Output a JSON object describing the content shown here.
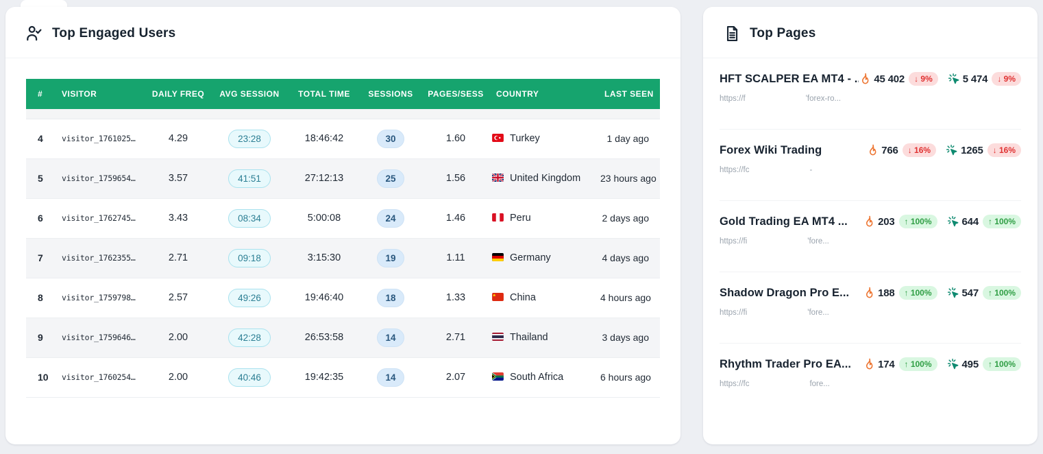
{
  "engaged_card": {
    "title": "Top Engaged Users",
    "table": {
      "columns": [
        "#",
        "VISITOR",
        "DAILY FREQ",
        "AVG SESSION",
        "TOTAL TIME",
        "SESSIONS",
        "PAGES/SESS",
        "COUNTRY",
        "LAST SEEN"
      ],
      "rows": [
        {
          "rank": "4",
          "visitor": "visitor_1761025…",
          "daily_freq": "4.29",
          "avg_session": "23:28",
          "total_time": "18:46:42",
          "sessions": "30",
          "pages_per_sess": "1.60",
          "country": "Turkey",
          "country_code": "tr",
          "last_seen": "1 day ago"
        },
        {
          "rank": "5",
          "visitor": "visitor_1759654…",
          "daily_freq": "3.57",
          "avg_session": "41:51",
          "total_time": "27:12:13",
          "sessions": "25",
          "pages_per_sess": "1.56",
          "country": "United Kingdom",
          "country_code": "gb",
          "last_seen": "23 hours ago"
        },
        {
          "rank": "6",
          "visitor": "visitor_1762745…",
          "daily_freq": "3.43",
          "avg_session": "08:34",
          "total_time": "5:00:08",
          "sessions": "24",
          "pages_per_sess": "1.46",
          "country": "Peru",
          "country_code": "pe",
          "last_seen": "2 days ago"
        },
        {
          "rank": "7",
          "visitor": "visitor_1762355…",
          "daily_freq": "2.71",
          "avg_session": "09:18",
          "total_time": "3:15:30",
          "sessions": "19",
          "pages_per_sess": "1.11",
          "country": "Germany",
          "country_code": "de",
          "last_seen": "4 days ago"
        },
        {
          "rank": "8",
          "visitor": "visitor_1759798…",
          "daily_freq": "2.57",
          "avg_session": "49:26",
          "total_time": "19:46:40",
          "sessions": "18",
          "pages_per_sess": "1.33",
          "country": "China",
          "country_code": "cn",
          "last_seen": "4 hours ago"
        },
        {
          "rank": "9",
          "visitor": "visitor_1759646…",
          "daily_freq": "2.00",
          "avg_session": "42:28",
          "total_time": "26:53:58",
          "sessions": "14",
          "pages_per_sess": "2.71",
          "country": "Thailand",
          "country_code": "th",
          "last_seen": "3 days ago"
        },
        {
          "rank": "10",
          "visitor": "visitor_1760254…",
          "daily_freq": "2.00",
          "avg_session": "40:46",
          "total_time": "19:42:35",
          "sessions": "14",
          "pages_per_sess": "2.07",
          "country": "South Africa",
          "country_code": "za",
          "last_seen": "6 hours ago"
        }
      ]
    }
  },
  "pages_card": {
    "title": "Top Pages",
    "items": [
      {
        "title": "HFT SCALPER EA MT4 - ...",
        "url_prefix": "https://f",
        "url_suffix": "'forex-ro...",
        "views": "45 402",
        "views_change": "9%",
        "views_dir": "down",
        "clicks": "5 474",
        "clicks_change": "9%",
        "clicks_dir": "down"
      },
      {
        "title": "Forex Wiki Trading",
        "url_prefix": "https://fc",
        "url_suffix": "-",
        "views": "766",
        "views_change": "16%",
        "views_dir": "down",
        "clicks": "1265",
        "clicks_change": "16%",
        "clicks_dir": "down"
      },
      {
        "title": "Gold Trading EA MT4 ...",
        "url_prefix": "https://fi",
        "url_suffix": "'fore...",
        "views": "203",
        "views_change": "100%",
        "views_dir": "up",
        "clicks": "644",
        "clicks_change": "100%",
        "clicks_dir": "up"
      },
      {
        "title": "Shadow Dragon Pro E...",
        "url_prefix": "https://fi",
        "url_suffix": "'fore...",
        "views": "188",
        "views_change": "100%",
        "views_dir": "up",
        "clicks": "547",
        "clicks_change": "100%",
        "clicks_dir": "up"
      },
      {
        "title": "Rhythm Trader Pro EA...",
        "url_prefix": "https://fc",
        "url_suffix": "fore...",
        "views": "174",
        "views_change": "100%",
        "views_dir": "up",
        "clicks": "495",
        "clicks_change": "100%",
        "clicks_dir": "up"
      }
    ]
  },
  "colors": {
    "table_header": "#16a46e",
    "badge_up_text": "#2f9e44",
    "badge_down_text": "#e03131",
    "flame_icon": "#ed7633",
    "click_icon": "#0f8a70"
  }
}
